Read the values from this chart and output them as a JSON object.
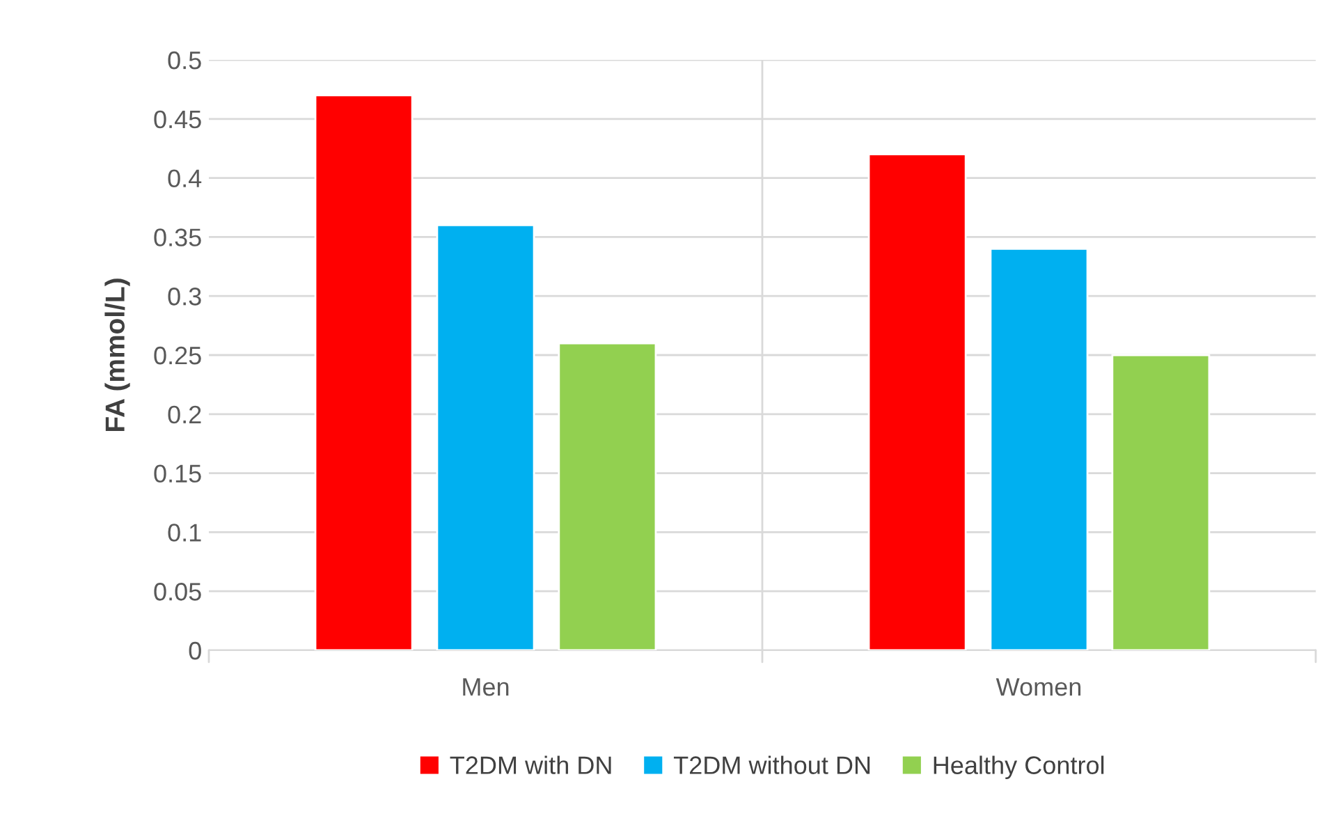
{
  "chart_data": {
    "type": "bar",
    "ylabel": "FA (mmol/L)",
    "categories": [
      "Men",
      "Women"
    ],
    "series": [
      {
        "name": "T2DM with DN",
        "color": "#ff0000",
        "values": [
          0.47,
          0.42
        ]
      },
      {
        "name": "T2DM without DN",
        "color": "#00b0f0",
        "values": [
          0.36,
          0.34
        ]
      },
      {
        "name": "Healthy Control",
        "color": "#92d050",
        "values": [
          0.26,
          0.25
        ]
      }
    ],
    "ylim": [
      0,
      0.5
    ],
    "yticks": [
      0,
      0.05,
      0.1,
      0.15,
      0.2,
      0.25,
      0.3,
      0.35,
      0.4,
      0.45,
      0.5
    ],
    "grid": true,
    "legend": "bottom"
  }
}
